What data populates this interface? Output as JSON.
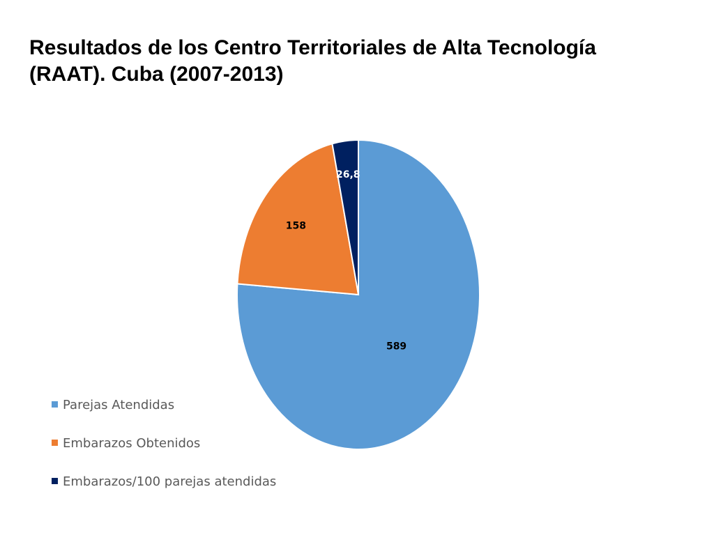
{
  "title_lines": [
    "Resultados de los Centro Territoriales de Alta Tecnología",
    "(RAAT). Cuba (2007-2013)"
  ],
  "chart_data": {
    "type": "pie",
    "title": "",
    "categories": [
      "Parejas Atendidas",
      "Embarazos Obtenidos",
      "Embarazos/100 parejas atendidas"
    ],
    "values": [
      589,
      158,
      26.8
    ],
    "value_labels": [
      "589",
      "158",
      "26,8"
    ],
    "colors": [
      "#5B9BD5",
      "#ED7D31",
      "#002060"
    ],
    "label_colors": [
      "#000000",
      "#000000",
      "#ffffff"
    ],
    "legend_position": "bottom-left",
    "start_angle": "top, clockwise"
  }
}
